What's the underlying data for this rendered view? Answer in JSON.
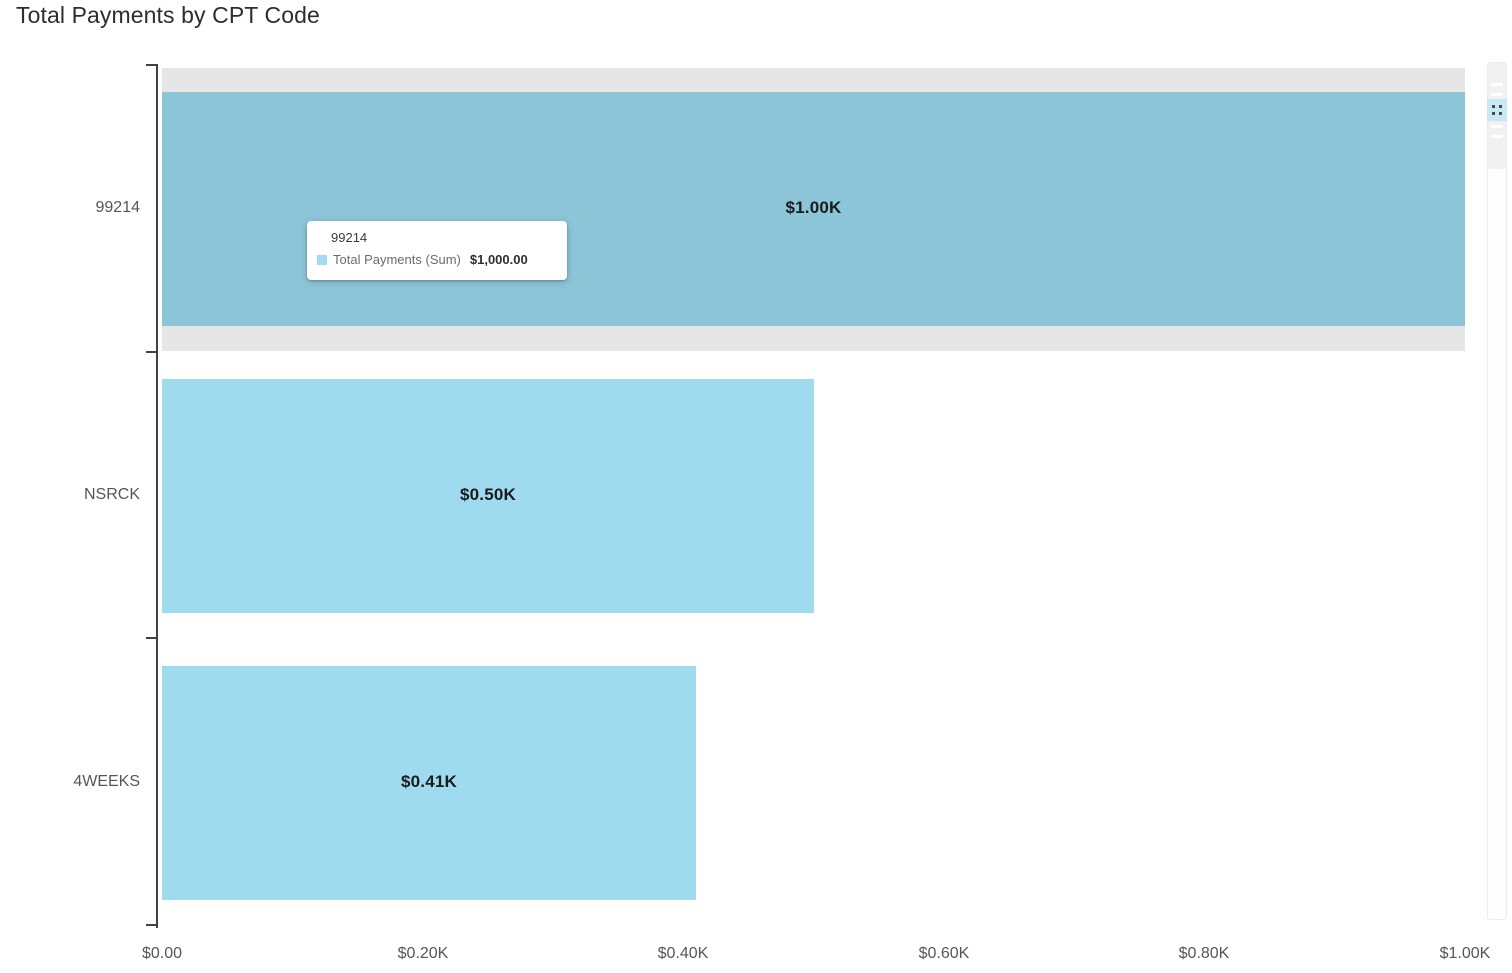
{
  "title": "Total Payments by CPT Code",
  "colors": {
    "bar": "#9FDBEF",
    "bar_hover": "#8CC4D8",
    "hover_band": "#E6E6E6",
    "axis": "#424242",
    "value_label_text": "#1B1B1B",
    "tick_text": "#565656",
    "scrollbar_grip": "#C9E8F6",
    "tooltip_swatch": "#A0DBEF"
  },
  "chart_data": {
    "type": "bar",
    "orientation": "horizontal",
    "title": "Total Payments by CPT Code",
    "series_name": "Total Payments (Sum)",
    "categories": [
      "99214",
      "NSRCK",
      "4WEEKS"
    ],
    "values": [
      1000,
      500,
      410
    ],
    "value_labels": [
      "$1.00K",
      "$0.50K",
      "$0.41K"
    ],
    "x_tick_labels": [
      "$0.00",
      "$0.20K",
      "$0.40K",
      "$0.60K",
      "$0.80K",
      "$1.00K"
    ],
    "x_tick_values": [
      0,
      200,
      400,
      600,
      800,
      1000
    ],
    "xlim": [
      0,
      1000
    ],
    "xlabel": "",
    "ylabel": "",
    "grid": false,
    "legend": "none",
    "hovered_index": 0
  },
  "tooltip": {
    "category": "99214",
    "series_label": "Total Payments (Sum)",
    "value": "$1,000.00"
  }
}
